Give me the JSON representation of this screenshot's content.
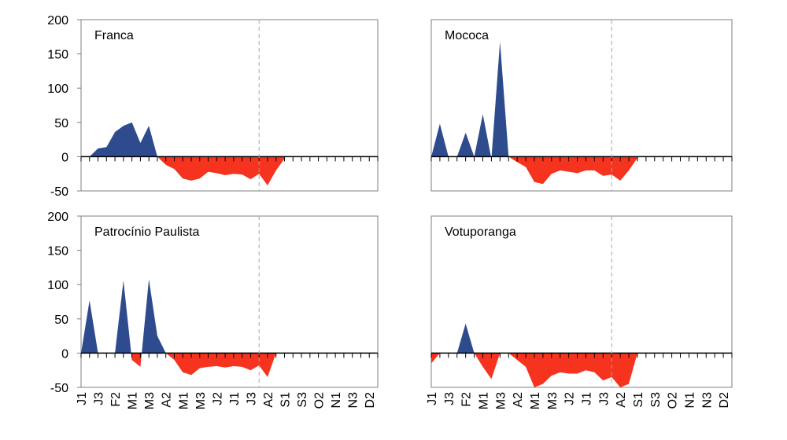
{
  "chart_data": [
    {
      "type": "area",
      "title": "Franca",
      "categories": [
        "J1",
        null,
        "J3",
        null,
        "F2",
        null,
        "M1",
        null,
        "M3",
        null,
        "A2",
        null,
        "M1",
        null,
        "M3",
        null,
        "J2",
        null,
        "J1",
        null,
        "J3",
        null,
        "A2",
        null,
        "S1",
        null,
        "S3",
        null,
        "O2",
        null,
        "N1",
        null,
        "N3",
        null,
        "D2",
        null
      ],
      "values": [
        0,
        0,
        12,
        14,
        36,
        45,
        50,
        20,
        45,
        0,
        -12,
        -18,
        -32,
        -35,
        -32,
        -22,
        -24,
        -27,
        -25,
        -26,
        -33,
        -25,
        -42,
        -20,
        -3,
        null,
        null,
        null,
        null,
        null,
        null,
        null,
        null,
        null,
        null,
        null
      ],
      "ylim": [
        -50,
        200
      ],
      "yticks": [
        -50,
        0,
        50,
        100,
        150,
        200
      ],
      "positive_color": "#2e4b8d",
      "negative_color": "#f5331f",
      "reference_x": 21
    },
    {
      "type": "area",
      "title": "Mococa",
      "categories": [
        "J1",
        null,
        "J3",
        null,
        "F2",
        null,
        "M1",
        null,
        "M3",
        null,
        "A2",
        null,
        "M1",
        null,
        "M3",
        null,
        "J2",
        null,
        "J1",
        null,
        "J3",
        null,
        "A2",
        null,
        "S1",
        null,
        "S3",
        null,
        "O2",
        null,
        "N1",
        null,
        "N3",
        null,
        "D2",
        null
      ],
      "values": [
        0,
        48,
        0,
        0,
        35,
        0,
        62,
        -3,
        168,
        0,
        -8,
        -15,
        -37,
        -40,
        -25,
        -20,
        -22,
        -24,
        -20,
        -20,
        -28,
        -26,
        -35,
        -20,
        -2,
        null,
        null,
        null,
        null,
        null,
        null,
        null,
        null,
        null,
        null,
        null
      ],
      "ylim": [
        -50,
        200
      ],
      "positive_color": "#2e4b8d",
      "negative_color": "#f5331f",
      "reference_x": 21
    },
    {
      "type": "area",
      "title": "Patrocínio Paulista",
      "categories": [
        "J1",
        null,
        "J3",
        null,
        "F2",
        null,
        "M1",
        null,
        "M3",
        null,
        "A2",
        null,
        "M1",
        null,
        "M3",
        null,
        "J2",
        null,
        "J1",
        null,
        "J3",
        null,
        "A2",
        null,
        "S1",
        null,
        "S3",
        null,
        "O2",
        null,
        "N1",
        null,
        "N3",
        null,
        "D2",
        null
      ],
      "values": [
        0,
        77,
        0,
        0,
        0,
        106,
        -10,
        -20,
        108,
        25,
        0,
        -10,
        -28,
        -32,
        -22,
        -20,
        -19,
        -21,
        -19,
        -20,
        -25,
        -18,
        -35,
        0,
        null,
        null,
        null,
        null,
        null,
        null,
        null,
        null,
        null,
        null,
        null,
        null
      ],
      "ylim": [
        -50,
        200
      ],
      "yticks": [
        -50,
        0,
        50,
        100,
        150,
        200
      ],
      "positive_color": "#2e4b8d",
      "negative_color": "#f5331f",
      "reference_x": 21
    },
    {
      "type": "area",
      "title": "Votuporanga",
      "categories": [
        "J1",
        null,
        "J3",
        null,
        "F2",
        null,
        "M1",
        null,
        "M3",
        null,
        "A2",
        null,
        "M1",
        null,
        "M3",
        null,
        "J2",
        null,
        "J1",
        null,
        "J3",
        null,
        "A2",
        null,
        "S1",
        null,
        "S3",
        null,
        "O2",
        null,
        "N1",
        null,
        "N3",
        null,
        "D2",
        null
      ],
      "values": [
        -15,
        0,
        0,
        0,
        43,
        0,
        -20,
        -38,
        0,
        0,
        -10,
        -20,
        -50,
        -45,
        -33,
        -28,
        -30,
        -30,
        -25,
        -28,
        -40,
        -35,
        -50,
        -45,
        0,
        null,
        null,
        null,
        null,
        null,
        null,
        null,
        null,
        null,
        null,
        null
      ],
      "ylim": [
        -50,
        200
      ],
      "positive_color": "#2e4b8d",
      "negative_color": "#f5331f",
      "reference_x": 21
    }
  ]
}
